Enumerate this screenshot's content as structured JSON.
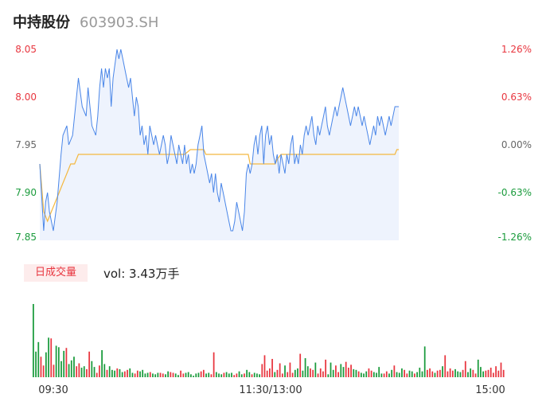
{
  "header": {
    "name": "中持股份",
    "code": "603903.SH"
  },
  "volume": {
    "tab_label": "日成交量",
    "summary": "vol: 3.43万手"
  },
  "colors": {
    "up": "#e8363f",
    "down": "#1a9b3c",
    "price_line": "#4a86e8",
    "avg_line": "#f4b840",
    "area_fill": "#eef3fd",
    "axis_text": "#333333"
  },
  "chart_data": [
    {
      "type": "line",
      "title": "",
      "prev_close": 7.955,
      "ylim": [
        7.85,
        8.05
      ],
      "y_ticks": [
        "8.05",
        "8.00",
        "7.95",
        "7.90",
        "7.85"
      ],
      "y_ticks_right": [
        "1.26%",
        "0.63%",
        "0.00%",
        "-0.63%",
        "-1.26%"
      ],
      "x_ticks": [
        "09:30",
        "11:30/13:00",
        "15:00"
      ],
      "minutes": 240,
      "series": [
        {
          "role": "price",
          "points": [
            [
              0,
              7.93
            ],
            [
              2,
              7.86
            ],
            [
              3,
              7.89
            ],
            [
              4,
              7.9
            ],
            [
              5,
              7.88
            ],
            [
              7,
              7.86
            ],
            [
              9,
              7.89
            ],
            [
              11,
              7.94
            ],
            [
              12,
              7.96
            ],
            [
              14,
              7.97
            ],
            [
              15,
              7.95
            ],
            [
              17,
              7.96
            ],
            [
              19,
              8.0
            ],
            [
              20,
              8.02
            ],
            [
              22,
              7.99
            ],
            [
              24,
              7.98
            ],
            [
              25,
              8.01
            ],
            [
              27,
              7.97
            ],
            [
              29,
              7.96
            ],
            [
              30,
              7.98
            ],
            [
              31,
              8.01
            ],
            [
              32,
              8.03
            ],
            [
              33,
              8.01
            ],
            [
              34,
              8.03
            ],
            [
              35,
              8.02
            ],
            [
              36,
              8.03
            ],
            [
              37,
              7.99
            ],
            [
              38,
              8.02
            ],
            [
              40,
              8.05
            ],
            [
              41,
              8.04
            ],
            [
              42,
              8.05
            ],
            [
              43,
              8.04
            ],
            [
              44,
              8.03
            ],
            [
              45,
              8.02
            ],
            [
              46,
              8.01
            ],
            [
              47,
              8.02
            ],
            [
              48,
              8.0
            ],
            [
              49,
              7.98
            ],
            [
              50,
              8.0
            ],
            [
              51,
              7.99
            ],
            [
              52,
              7.96
            ],
            [
              53,
              7.97
            ],
            [
              54,
              7.95
            ],
            [
              55,
              7.96
            ],
            [
              56,
              7.94
            ],
            [
              57,
              7.97
            ],
            [
              59,
              7.95
            ],
            [
              60,
              7.96
            ],
            [
              61,
              7.95
            ],
            [
              62,
              7.94
            ],
            [
              63,
              7.95
            ],
            [
              64,
              7.96
            ],
            [
              65,
              7.95
            ],
            [
              66,
              7.93
            ],
            [
              67,
              7.94
            ],
            [
              68,
              7.96
            ],
            [
              70,
              7.94
            ],
            [
              71,
              7.93
            ],
            [
              72,
              7.95
            ],
            [
              73,
              7.94
            ],
            [
              74,
              7.93
            ],
            [
              75,
              7.95
            ],
            [
              76,
              7.93
            ],
            [
              77,
              7.94
            ],
            [
              78,
              7.92
            ],
            [
              79,
              7.93
            ],
            [
              80,
              7.92
            ],
            [
              81,
              7.93
            ],
            [
              82,
              7.95
            ],
            [
              83,
              7.96
            ],
            [
              84,
              7.97
            ],
            [
              85,
              7.94
            ],
            [
              86,
              7.93
            ],
            [
              87,
              7.92
            ],
            [
              88,
              7.91
            ],
            [
              89,
              7.92
            ],
            [
              90,
              7.9
            ],
            [
              91,
              7.92
            ],
            [
              92,
              7.9
            ],
            [
              93,
              7.89
            ],
            [
              94,
              7.91
            ],
            [
              95,
              7.9
            ],
            [
              96,
              7.89
            ],
            [
              97,
              7.88
            ],
            [
              98,
              7.87
            ],
            [
              99,
              7.86
            ],
            [
              100,
              7.86
            ],
            [
              101,
              7.87
            ],
            [
              102,
              7.89
            ],
            [
              103,
              7.88
            ],
            [
              104,
              7.87
            ],
            [
              105,
              7.86
            ],
            [
              106,
              7.88
            ],
            [
              107,
              7.92
            ],
            [
              108,
              7.93
            ],
            [
              109,
              7.92
            ],
            [
              110,
              7.93
            ],
            [
              111,
              7.95
            ],
            [
              112,
              7.96
            ],
            [
              113,
              7.94
            ],
            [
              114,
              7.96
            ],
            [
              115,
              7.97
            ],
            [
              116,
              7.93
            ],
            [
              117,
              7.96
            ],
            [
              118,
              7.97
            ],
            [
              119,
              7.95
            ],
            [
              120,
              7.96
            ],
            [
              121,
              7.94
            ],
            [
              122,
              7.93
            ],
            [
              123,
              7.94
            ],
            [
              124,
              7.92
            ],
            [
              125,
              7.94
            ],
            [
              126,
              7.93
            ],
            [
              127,
              7.92
            ],
            [
              128,
              7.94
            ],
            [
              129,
              7.93
            ],
            [
              130,
              7.95
            ],
            [
              131,
              7.96
            ],
            [
              132,
              7.93
            ],
            [
              133,
              7.94
            ],
            [
              134,
              7.93
            ],
            [
              135,
              7.95
            ],
            [
              136,
              7.94
            ],
            [
              137,
              7.96
            ],
            [
              138,
              7.97
            ],
            [
              139,
              7.96
            ],
            [
              140,
              7.97
            ],
            [
              141,
              7.98
            ],
            [
              142,
              7.96
            ],
            [
              143,
              7.95
            ],
            [
              144,
              7.97
            ],
            [
              145,
              7.96
            ],
            [
              146,
              7.97
            ],
            [
              147,
              7.98
            ],
            [
              148,
              7.99
            ],
            [
              149,
              7.97
            ],
            [
              150,
              7.96
            ],
            [
              151,
              7.97
            ],
            [
              152,
              7.98
            ],
            [
              153,
              7.99
            ],
            [
              154,
              7.98
            ],
            [
              155,
              7.99
            ],
            [
              156,
              8.0
            ],
            [
              157,
              8.01
            ],
            [
              158,
              8.0
            ],
            [
              159,
              7.99
            ],
            [
              160,
              7.98
            ],
            [
              161,
              7.97
            ],
            [
              162,
              7.98
            ],
            [
              163,
              7.99
            ],
            [
              164,
              7.98
            ],
            [
              165,
              7.99
            ],
            [
              166,
              7.98
            ],
            [
              167,
              7.97
            ],
            [
              168,
              7.98
            ],
            [
              169,
              7.97
            ],
            [
              170,
              7.96
            ],
            [
              171,
              7.95
            ],
            [
              172,
              7.96
            ],
            [
              173,
              7.97
            ],
            [
              174,
              7.96
            ],
            [
              175,
              7.98
            ],
            [
              176,
              7.97
            ],
            [
              177,
              7.98
            ],
            [
              178,
              7.97
            ],
            [
              179,
              7.96
            ],
            [
              180,
              7.97
            ],
            [
              181,
              7.98
            ],
            [
              182,
              7.97
            ],
            [
              184,
              7.99
            ],
            [
              186,
              7.99
            ]
          ]
        },
        {
          "role": "avg",
          "points": [
            [
              0,
              7.93
            ],
            [
              2,
              7.88
            ],
            [
              4,
              7.87
            ],
            [
              6,
              7.88
            ],
            [
              8,
              7.89
            ],
            [
              10,
              7.9
            ],
            [
              12,
              7.91
            ],
            [
              14,
              7.92
            ],
            [
              16,
              7.93
            ],
            [
              18,
              7.93
            ],
            [
              20,
              7.94
            ],
            [
              22,
              7.94
            ],
            [
              24,
              7.94
            ],
            [
              26,
              7.94
            ],
            [
              30,
              7.94
            ],
            [
              40,
              7.94
            ],
            [
              50,
              7.94
            ],
            [
              60,
              7.94
            ],
            [
              70,
              7.94
            ],
            [
              75,
              7.94
            ],
            [
              78,
              7.945
            ],
            [
              85,
              7.945
            ],
            [
              86,
              7.94
            ],
            [
              95,
              7.94
            ],
            [
              100,
              7.94
            ],
            [
              108,
              7.94
            ],
            [
              109,
              7.93
            ],
            [
              115,
              7.93
            ],
            [
              118,
              7.93
            ],
            [
              120,
              7.93
            ],
            [
              122,
              7.93
            ],
            [
              123,
              7.935
            ],
            [
              125,
              7.94
            ],
            [
              140,
              7.94
            ],
            [
              160,
              7.94
            ],
            [
              175,
              7.94
            ],
            [
              184,
              7.94
            ],
            [
              185,
              7.945
            ],
            [
              186,
              7.945
            ]
          ]
        }
      ]
    },
    {
      "type": "bar",
      "title": "",
      "unit": "万手",
      "x_ticks": [
        "09:30",
        "11:30/13:00",
        "15:00"
      ],
      "values": [
        1.0,
        0.35,
        0.48,
        0.28,
        0.16,
        0.34,
        0.54,
        0.53,
        0.17,
        0.43,
        0.41,
        0.22,
        0.36,
        0.4,
        0.18,
        0.23,
        0.28,
        0.15,
        0.19,
        0.13,
        0.15,
        0.11,
        0.35,
        0.22,
        0.14,
        0.06,
        0.16,
        0.37,
        0.18,
        0.1,
        0.15,
        0.1,
        0.09,
        0.12,
        0.11,
        0.07,
        0.08,
        0.1,
        0.12,
        0.06,
        0.05,
        0.09,
        0.08,
        0.1,
        0.05,
        0.06,
        0.07,
        0.05,
        0.04,
        0.06,
        0.06,
        0.05,
        0.04,
        0.08,
        0.07,
        0.06,
        0.05,
        0.03,
        0.09,
        0.05,
        0.06,
        0.07,
        0.04,
        0.02,
        0.05,
        0.06,
        0.08,
        0.1,
        0.05,
        0.06,
        0.04,
        0.34,
        0.07,
        0.05,
        0.04,
        0.06,
        0.07,
        0.05,
        0.06,
        0.03,
        0.05,
        0.08,
        0.04,
        0.05,
        0.1,
        0.07,
        0.04,
        0.06,
        0.05,
        0.04,
        0.18,
        0.3,
        0.09,
        0.12,
        0.25,
        0.07,
        0.1,
        0.19,
        0.05,
        0.16,
        0.07,
        0.2,
        0.06,
        0.1,
        0.12,
        0.32,
        0.09,
        0.26,
        0.15,
        0.12,
        0.1,
        0.2,
        0.05,
        0.12,
        0.08,
        0.24,
        0.04,
        0.2,
        0.1,
        0.16,
        0.07,
        0.18,
        0.14,
        0.21,
        0.13,
        0.17,
        0.11,
        0.1,
        0.08,
        0.06,
        0.05,
        0.08,
        0.12,
        0.09,
        0.07,
        0.06,
        0.14,
        0.05,
        0.05,
        0.08,
        0.05,
        0.1,
        0.16,
        0.07,
        0.06,
        0.12,
        0.1,
        0.05,
        0.09,
        0.08,
        0.05,
        0.07,
        0.13,
        0.08,
        0.42,
        0.1,
        0.12,
        0.08,
        0.06,
        0.09,
        0.1,
        0.15,
        0.3,
        0.08,
        0.12,
        0.09,
        0.11,
        0.08,
        0.07,
        0.1,
        0.22,
        0.07,
        0.12,
        0.1,
        0.05,
        0.24,
        0.14,
        0.08,
        0.09,
        0.1,
        0.13,
        0.06,
        0.15,
        0.09,
        0.2,
        0.1
      ],
      "directions": "ddduudduudddduddduudduudduuddudddudduudduudddduddduudduudduudddddduudduuddduddduuddudduddduuuuuduuuduuudduddduuduuuuddduudduuudduddduudddduudduddduuddudddduuuduuduuuuddduudduuddduu"
    }
  ]
}
